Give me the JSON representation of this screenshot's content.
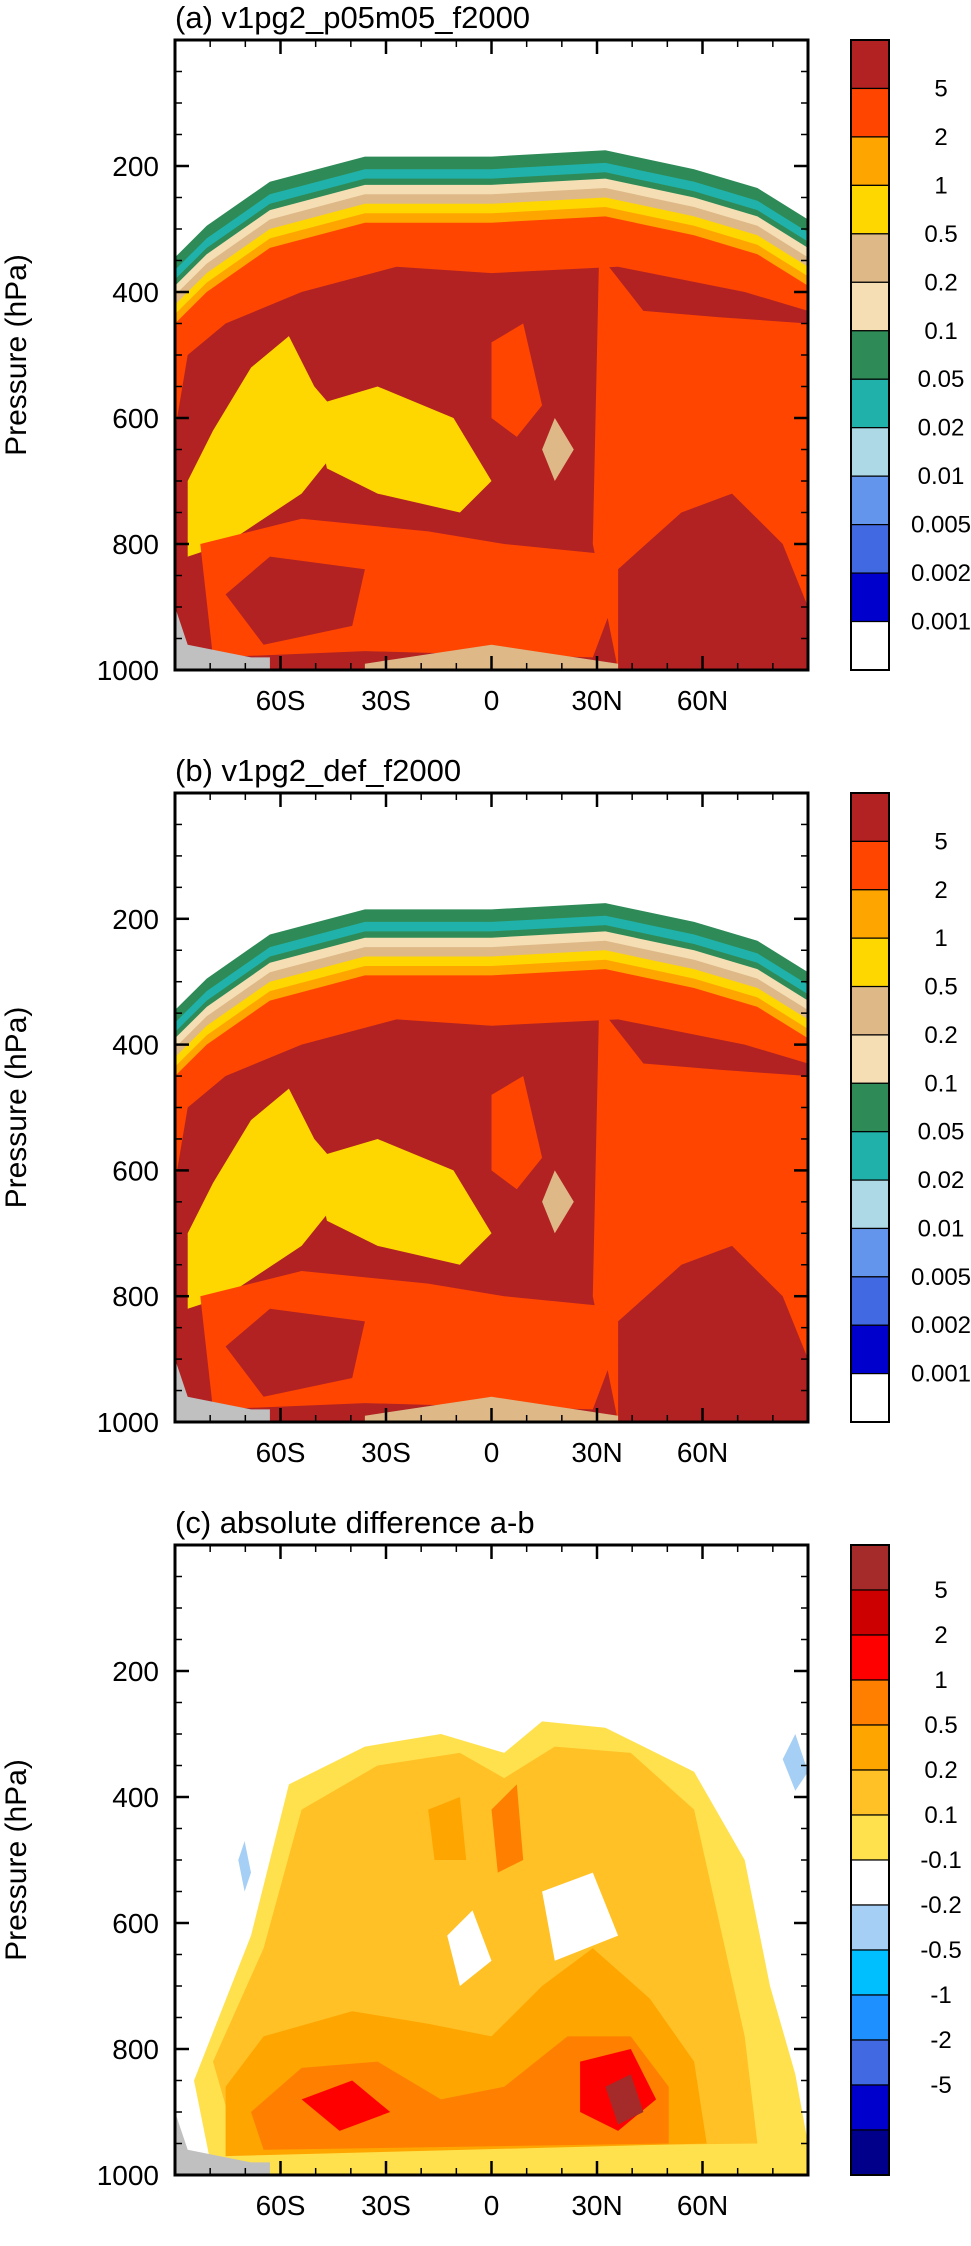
{
  "chart_data": [
    {
      "type": "contour",
      "title": "(a) v1pg2_p05m05_f2000",
      "ylabel": "Pressure (hPa)",
      "xlabel": "",
      "yticks": [
        "200",
        "400",
        "600",
        "800",
        "1000"
      ],
      "xticks": [
        "60S",
        "30S",
        "0",
        "30N",
        "60N"
      ],
      "xlim": [
        -90,
        90
      ],
      "ylim": [
        1000,
        0
      ],
      "colorbar": {
        "labels": [
          "5",
          "2",
          "1",
          "0.5",
          "0.2",
          "0.1",
          "0.05",
          "0.02",
          "0.01",
          "0.005",
          "0.002",
          "0.001"
        ],
        "colors": [
          "#b22222",
          "#ff4500",
          "#ffa500",
          "#ffd700",
          "#deb887",
          "#f5deb3",
          "#2e8b57",
          "#20b2aa",
          "#add8e6",
          "#6495ed",
          "#4169e1",
          "#0000cd",
          "#ffffff"
        ]
      }
    },
    {
      "type": "contour",
      "title": "(b) v1pg2_def_f2000",
      "ylabel": "Pressure (hPa)",
      "xlabel": "",
      "yticks": [
        "200",
        "400",
        "600",
        "800",
        "1000"
      ],
      "xticks": [
        "60S",
        "30S",
        "0",
        "30N",
        "60N"
      ],
      "xlim": [
        -90,
        90
      ],
      "ylim": [
        1000,
        0
      ],
      "colorbar": {
        "labels": [
          "5",
          "2",
          "1",
          "0.5",
          "0.2",
          "0.1",
          "0.05",
          "0.02",
          "0.01",
          "0.005",
          "0.002",
          "0.001"
        ],
        "colors": [
          "#b22222",
          "#ff4500",
          "#ffa500",
          "#ffd700",
          "#deb887",
          "#f5deb3",
          "#2e8b57",
          "#20b2aa",
          "#add8e6",
          "#6495ed",
          "#4169e1",
          "#0000cd",
          "#ffffff"
        ]
      }
    },
    {
      "type": "contour",
      "title": "(c) absolute difference a-b",
      "ylabel": "Pressure (hPa)",
      "xlabel": "",
      "yticks": [
        "200",
        "400",
        "600",
        "800",
        "1000"
      ],
      "xticks": [
        "60S",
        "30S",
        "0",
        "30N",
        "60N"
      ],
      "xlim": [
        -90,
        90
      ],
      "ylim": [
        1000,
        0
      ],
      "colorbar": {
        "labels": [
          "5",
          "2",
          "1",
          "0.5",
          "0.2",
          "0.1",
          "-0.1",
          "-0.2",
          "-0.5",
          "-1",
          "-2",
          "-5"
        ],
        "colors": [
          "#a52a2a",
          "#cc0000",
          "#ff0000",
          "#ff7f00",
          "#ffa500",
          "#ffc125",
          "#ffe14d",
          "#ffffff",
          "#a6cff5",
          "#00bfff",
          "#1e90ff",
          "#4169e1",
          "#0000cd",
          "#00008b"
        ]
      }
    }
  ]
}
